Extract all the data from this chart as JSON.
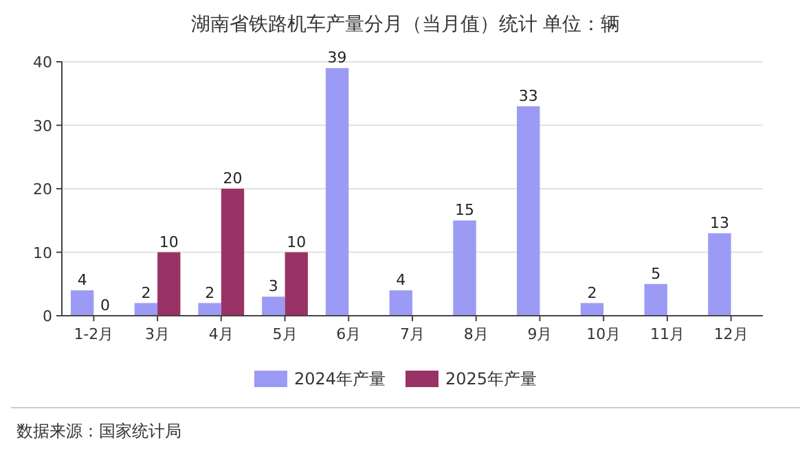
{
  "chart_data": {
    "type": "bar",
    "title": "湖南省铁路机车产量分月（当月值）统计  单位：辆",
    "categories": [
      "1-2月",
      "3月",
      "4月",
      "5月",
      "6月",
      "7月",
      "8月",
      "9月",
      "10月",
      "11月",
      "12月"
    ],
    "series": [
      {
        "name": "2024年产量",
        "color": "#9b9bf5",
        "values": [
          4,
          2,
          2,
          3,
          39,
          4,
          15,
          33,
          2,
          5,
          13
        ]
      },
      {
        "name": "2025年产量",
        "color": "#993366",
        "values": [
          0,
          10,
          20,
          10,
          null,
          null,
          null,
          null,
          null,
          null,
          null
        ]
      }
    ],
    "ylim": [
      0,
      40
    ],
    "yticks": [
      0,
      10,
      20,
      30,
      40
    ],
    "grid": "y",
    "legend": "bottom",
    "data_labels": true,
    "annotations": [
      "数据来源：国家统计局"
    ]
  }
}
